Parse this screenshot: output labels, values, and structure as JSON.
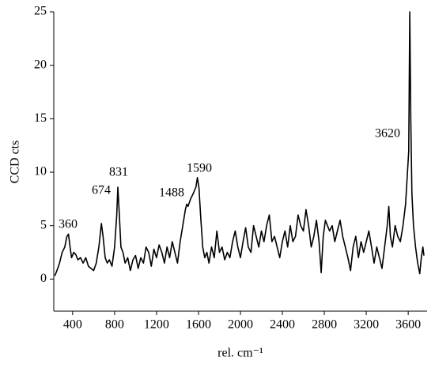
{
  "chart_data": {
    "type": "line",
    "xlabel": "rel. cm⁻¹",
    "ylabel": "CCD cts",
    "x": [
      230,
      250,
      275,
      300,
      325,
      345,
      360,
      375,
      390,
      410,
      430,
      450,
      475,
      500,
      525,
      550,
      575,
      600,
      625,
      650,
      674,
      690,
      710,
      730,
      750,
      775,
      800,
      820,
      831,
      845,
      860,
      880,
      900,
      925,
      950,
      975,
      1000,
      1025,
      1050,
      1075,
      1100,
      1125,
      1150,
      1175,
      1200,
      1225,
      1250,
      1275,
      1300,
      1325,
      1350,
      1375,
      1400,
      1425,
      1450,
      1475,
      1488,
      1500,
      1525,
      1550,
      1575,
      1590,
      1605,
      1620,
      1640,
      1660,
      1680,
      1700,
      1725,
      1750,
      1775,
      1800,
      1825,
      1850,
      1875,
      1900,
      1925,
      1950,
      1975,
      2000,
      2025,
      2050,
      2075,
      2100,
      2125,
      2150,
      2175,
      2200,
      2225,
      2250,
      2275,
      2300,
      2325,
      2350,
      2375,
      2400,
      2425,
      2450,
      2475,
      2500,
      2525,
      2550,
      2575,
      2600,
      2625,
      2650,
      2675,
      2700,
      2725,
      2750,
      2770,
      2790,
      2810,
      2850,
      2875,
      2900,
      2925,
      2950,
      2975,
      3000,
      3025,
      3050,
      3075,
      3100,
      3125,
      3150,
      3175,
      3200,
      3225,
      3250,
      3275,
      3300,
      3325,
      3350,
      3375,
      3400,
      3415,
      3430,
      3450,
      3475,
      3500,
      3525,
      3550,
      3575,
      3590,
      3605,
      3615,
      3625,
      3635,
      3650,
      3670,
      3690,
      3710,
      3725,
      3740,
      3750
    ],
    "values": [
      0.3,
      0.8,
      1.5,
      2.5,
      3,
      4,
      4.2,
      3,
      2,
      2.5,
      2.3,
      1.8,
      2,
      1.5,
      2,
      1.2,
      1,
      0.8,
      1.5,
      3,
      5.2,
      4,
      2,
      1.5,
      1.8,
      1.2,
      3,
      6,
      8.6,
      6,
      3,
      2.5,
      1.5,
      2,
      0.8,
      1.8,
      2.2,
      1,
      2,
      1.5,
      3,
      2.5,
      1.2,
      2.8,
      2,
      3.2,
      2.5,
      1.5,
      3,
      2,
      3.5,
      2.5,
      1.5,
      3.5,
      5,
      6.5,
      7,
      6.8,
      7.5,
      8,
      8.6,
      9.5,
      8.5,
      6,
      3,
      2,
      2.5,
      1.5,
      3,
      2,
      4.5,
      2.5,
      3,
      1.8,
      2.5,
      2,
      3.5,
      4.5,
      3,
      2,
      3.5,
      4.8,
      3,
      2.5,
      5,
      4,
      3,
      4.5,
      3.5,
      5,
      6,
      3.5,
      4,
      3,
      2,
      3.5,
      4.5,
      3,
      5,
      3.5,
      4,
      6,
      5,
      4.5,
      6.5,
      5,
      3,
      4,
      5.5,
      3.5,
      0.6,
      4,
      5.5,
      4.5,
      5,
      3.5,
      4.5,
      5.5,
      4,
      3,
      2,
      0.8,
      3,
      4,
      2,
      3.5,
      2.5,
      3.5,
      4.5,
      3,
      1.5,
      3,
      2,
      1,
      3,
      5,
      6.8,
      4,
      3,
      5,
      4,
      3.5,
      5,
      7,
      9.5,
      12,
      25,
      15,
      8,
      5,
      3,
      1.5,
      0.5,
      2,
      3,
      2.2
    ],
    "color": "#000000",
    "xlim": [
      220,
      3780
    ],
    "xticks": [
      400,
      800,
      1200,
      1600,
      2000,
      2400,
      2800,
      3200,
      3600
    ],
    "ylim": [
      -3,
      25
    ],
    "yticks": [
      0,
      5,
      10,
      15,
      20,
      25
    ],
    "annotations": [
      "360",
      "674",
      "831",
      "1488",
      "1590",
      "3620"
    ]
  }
}
